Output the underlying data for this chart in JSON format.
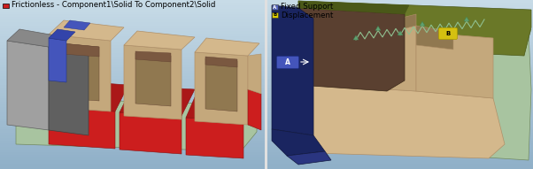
{
  "left_panel": {
    "title": "Frictionless - Component1\\Solid To Component2\\Solid",
    "title_color": "#000000",
    "title_fontsize": 6.2,
    "legend_icon_color": "#cc2222",
    "bg_top": "#c8dce8",
    "bg_bottom": "#a8c0d4"
  },
  "right_panel": {
    "legend_items": [
      {
        "label": "Fixed Support",
        "color": "#5566bb",
        "letter": "A"
      },
      {
        "label": "Displacement",
        "color": "#ddcc00",
        "letter": "B"
      }
    ],
    "legend_fontsize": 6.2,
    "bg_top": "#c8dce8",
    "bg_bottom": "#a8c0d4"
  },
  "divider_color": "#d0d0d0",
  "colors": {
    "tan_light": "#d4b88c",
    "tan_mid": "#c4a87c",
    "tan_dark": "#b09068",
    "tan_shadow": "#907850",
    "red_bright": "#cc1e1e",
    "red_mid": "#aa1818",
    "red_dark": "#881010",
    "blue_bright": "#4455bb",
    "blue_mid": "#3344aa",
    "blue_dark": "#223388",
    "green_light": "#a8c4a0",
    "green_mid": "#90b088",
    "green_dark": "#708860",
    "navy": "#1a2560",
    "navy_dark": "#111840",
    "brown": "#5a4030",
    "brown_dark": "#3a2818",
    "olive": "#6a7828",
    "olive_dark": "#4a5818",
    "gray_light": "#a0a0a0",
    "gray_dark": "#606060",
    "yellow": "#d4c010",
    "yellow_dk": "#aa9800"
  }
}
